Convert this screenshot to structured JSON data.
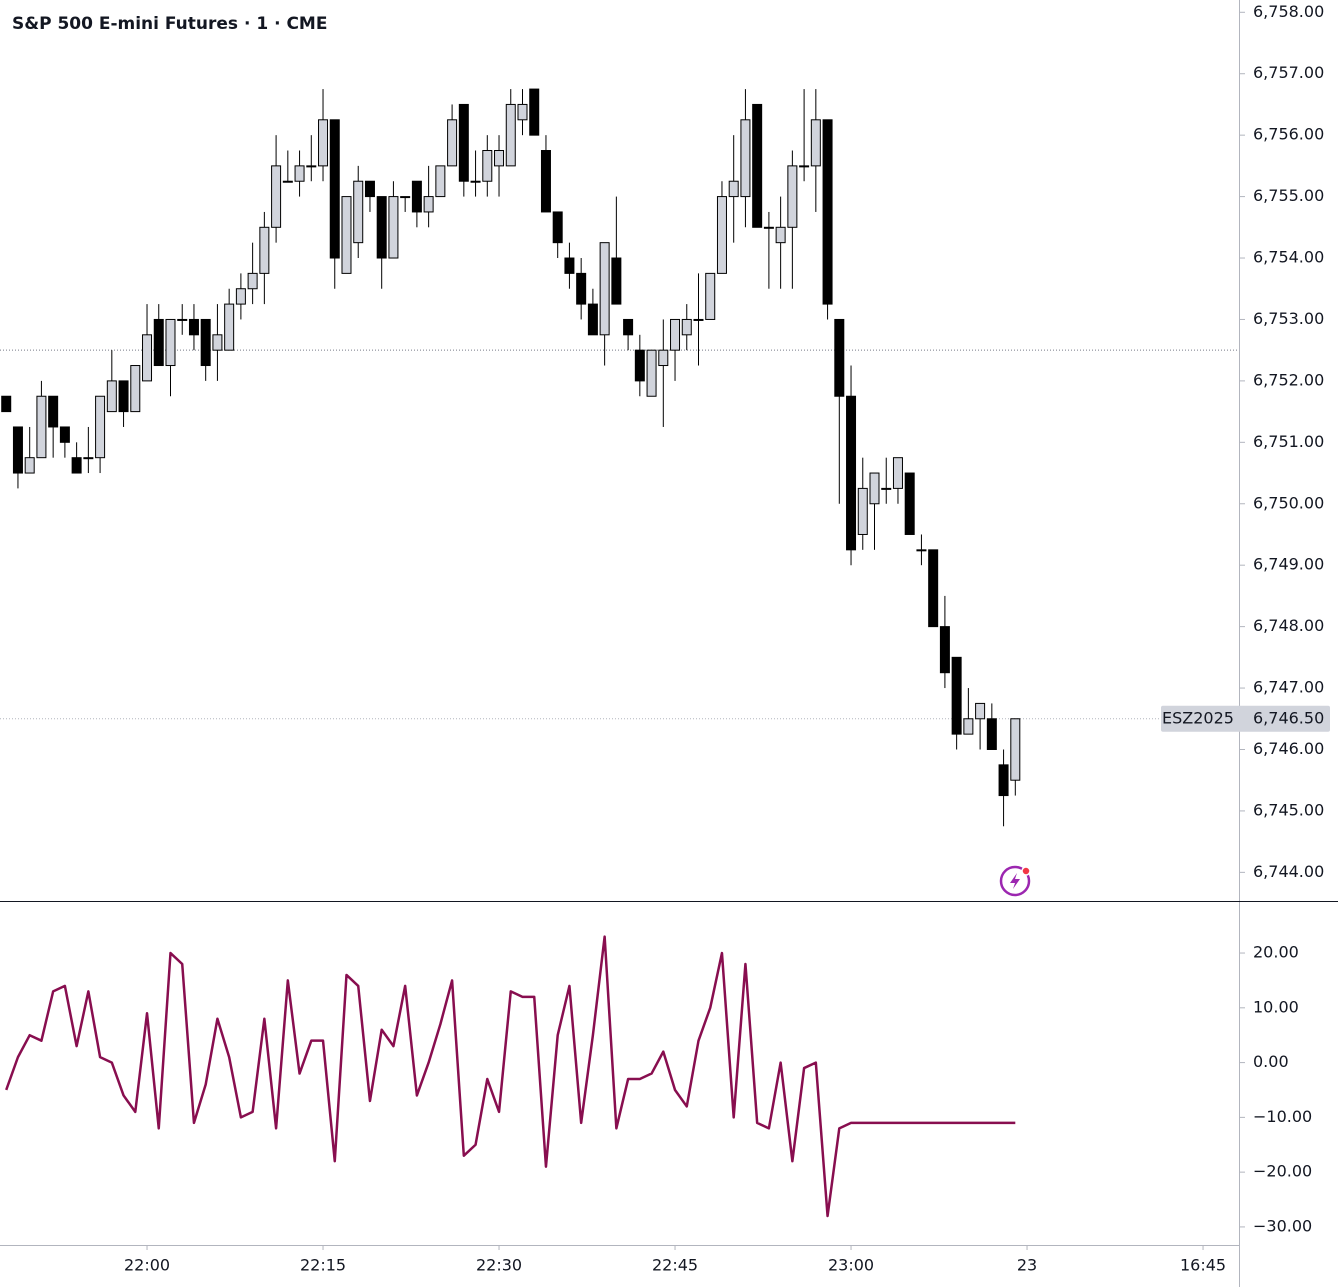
{
  "chart_data": {
    "type": "candlestick",
    "title": "S&P 500 E-mini Futures · 1 · CME",
    "x": [
      -12,
      -11,
      -10,
      -9,
      -8,
      -7,
      -6,
      -5,
      -4,
      -3,
      -2,
      -1,
      0,
      1,
      2,
      3,
      4,
      5,
      6,
      7,
      8,
      9,
      10,
      11,
      12,
      13,
      14,
      15,
      16,
      17,
      18,
      19,
      20,
      21,
      22,
      23,
      24,
      25,
      26,
      27,
      28,
      29,
      30,
      31,
      32,
      33,
      34,
      35,
      36,
      37,
      38,
      39,
      40,
      41,
      42,
      43,
      44,
      45,
      46,
      47,
      48,
      49,
      50,
      51,
      52,
      53,
      54,
      55,
      56,
      57,
      58,
      59,
      60,
      61,
      62,
      63,
      64,
      65,
      66,
      67,
      68,
      69,
      70,
      71,
      72,
      73,
      74
    ],
    "xlim": [
      -12.53,
      93.15
    ],
    "xticks": [
      {
        "value": 0,
        "label": "22:00"
      },
      {
        "value": 15,
        "label": "22:15"
      },
      {
        "value": 30,
        "label": "22:30"
      },
      {
        "value": 45,
        "label": "22:45"
      },
      {
        "value": 60,
        "label": "23:00"
      },
      {
        "value": 75,
        "label": "23"
      },
      {
        "value": 90,
        "label": "16:45"
      }
    ],
    "open": [
      6751.75,
      6751.25,
      6750.5,
      6750.75,
      6751.75,
      6751.25,
      6750.75,
      6750.75,
      6750.75,
      6751.5,
      6752.0,
      6751.5,
      6752.0,
      6753.0,
      6752.25,
      6753.0,
      6753.0,
      6753.0,
      6752.5,
      6752.5,
      6753.25,
      6753.5,
      6753.75,
      6754.5,
      6755.25,
      6755.25,
      6755.5,
      6755.5,
      6756.25,
      6753.75,
      6754.25,
      6755.25,
      6755.0,
      6754.0,
      6755.0,
      6755.25,
      6754.75,
      6755.0,
      6755.5,
      6756.5,
      6755.25,
      6755.25,
      6755.5,
      6755.5,
      6756.25,
      6756.75,
      6755.75,
      6754.75,
      6754.0,
      6753.75,
      6753.25,
      6752.75,
      6754.0,
      6753.0,
      6752.5,
      6751.75,
      6752.25,
      6752.5,
      6752.75,
      6753.0,
      6753.0,
      6753.75,
      6755.0,
      6755.0,
      6756.5,
      6754.5,
      6754.25,
      6754.5,
      6755.5,
      6755.5,
      6756.25,
      6753.0,
      6751.75,
      6749.5,
      6750.0,
      6750.25,
      6750.25,
      6750.5,
      6749.25,
      6749.25,
      6748.0,
      6747.5,
      6746.25,
      6746.5,
      6746.5,
      6745.75,
      6745.5
    ],
    "high": [
      6751.75,
      6751.25,
      6751.25,
      6752.0,
      6751.75,
      6751.25,
      6751.0,
      6751.25,
      6751.75,
      6752.5,
      6752.0,
      6752.25,
      6753.25,
      6753.25,
      6753.0,
      6753.25,
      6753.25,
      6753.0,
      6753.25,
      6753.5,
      6753.75,
      6754.25,
      6754.75,
      6756.0,
      6755.75,
      6755.75,
      6756.0,
      6756.75,
      6756.25,
      6755.0,
      6755.5,
      6755.25,
      6755.0,
      6755.25,
      6755.0,
      6755.25,
      6755.5,
      6755.5,
      6756.5,
      6756.5,
      6755.75,
      6756.0,
      6756.0,
      6756.75,
      6756.75,
      6756.75,
      6756.0,
      6754.75,
      6754.25,
      6754.0,
      6753.5,
      6754.25,
      6755.0,
      6753.0,
      6752.75,
      6752.5,
      6753.0,
      6753.0,
      6753.25,
      6753.75,
      6753.75,
      6755.25,
      6756.0,
      6756.75,
      6756.5,
      6754.75,
      6755.0,
      6755.75,
      6756.75,
      6756.75,
      6756.25,
      6753.0,
      6752.25,
      6750.75,
      6750.5,
      6750.75,
      6750.75,
      6750.5,
      6749.5,
      6749.25,
      6748.5,
      6747.5,
      6747.0,
      6746.75,
      6746.75,
      6746.0,
      6746.5
    ],
    "low": [
      6751.5,
      6750.25,
      6750.5,
      6750.75,
      6750.75,
      6750.75,
      6750.5,
      6750.5,
      6750.5,
      6751.5,
      6751.25,
      6751.5,
      6752.0,
      6752.25,
      6751.75,
      6752.75,
      6752.5,
      6752.0,
      6752.0,
      6752.5,
      6753.0,
      6753.25,
      6753.25,
      6754.25,
      6755.25,
      6755.0,
      6755.25,
      6755.25,
      6753.5,
      6753.75,
      6754.0,
      6754.75,
      6753.5,
      6754.0,
      6754.75,
      6754.5,
      6754.5,
      6755.0,
      6755.5,
      6755.0,
      6755.0,
      6755.0,
      6755.0,
      6755.5,
      6756.0,
      6756.0,
      6754.75,
      6754.0,
      6753.5,
      6753.0,
      6752.75,
      6752.25,
      6753.25,
      6752.5,
      6751.75,
      6751.75,
      6751.25,
      6752.0,
      6752.5,
      6752.25,
      6753.0,
      6753.75,
      6754.25,
      6754.5,
      6754.5,
      6753.5,
      6753.5,
      6753.5,
      6755.25,
      6754.75,
      6753.0,
      6750.0,
      6749.0,
      6749.25,
      6749.25,
      6750.0,
      6750.0,
      6749.5,
      6749.0,
      6748.0,
      6747.0,
      6746.0,
      6746.25,
      6746.0,
      6746.0,
      6744.75,
      6745.25
    ],
    "close": [
      6751.5,
      6750.5,
      6750.75,
      6751.75,
      6751.25,
      6751.0,
      6750.5,
      6750.75,
      6751.75,
      6752.0,
      6751.5,
      6752.25,
      6752.75,
      6752.25,
      6753.0,
      6753.0,
      6752.75,
      6752.25,
      6752.75,
      6753.25,
      6753.5,
      6753.75,
      6754.5,
      6755.5,
      6755.25,
      6755.5,
      6755.5,
      6756.25,
      6754.0,
      6755.0,
      6755.25,
      6755.0,
      6754.0,
      6755.0,
      6755.0,
      6754.75,
      6755.0,
      6755.5,
      6756.25,
      6755.25,
      6755.25,
      6755.75,
      6755.75,
      6756.5,
      6756.5,
      6756.0,
      6754.75,
      6754.25,
      6753.75,
      6753.25,
      6752.75,
      6754.25,
      6753.25,
      6752.75,
      6752.0,
      6752.5,
      6752.5,
      6753.0,
      6753.0,
      6753.0,
      6753.75,
      6755.0,
      6755.25,
      6756.25,
      6754.5,
      6754.5,
      6754.5,
      6755.5,
      6755.5,
      6756.25,
      6753.25,
      6751.75,
      6749.25,
      6750.25,
      6750.5,
      6750.25,
      6750.75,
      6749.5,
      6749.25,
      6748.0,
      6747.25,
      6746.25,
      6746.5,
      6746.75,
      6746.0,
      6745.25,
      6746.5
    ],
    "up_color": "#d1d4dc",
    "down_color": "#000000",
    "ylim": [
      6743.55,
      6758.2
    ],
    "yticks": [
      {
        "value": 6758,
        "label": "6,758.00"
      },
      {
        "value": 6757,
        "label": "6,757.00"
      },
      {
        "value": 6756,
        "label": "6,756.00"
      },
      {
        "value": 6755,
        "label": "6,755.00"
      },
      {
        "value": 6754,
        "label": "6,754.00"
      },
      {
        "value": 6753,
        "label": "6,753.00"
      },
      {
        "value": 6752,
        "label": "6,752.00"
      },
      {
        "value": 6751,
        "label": "6,751.00"
      },
      {
        "value": 6750,
        "label": "6,750.00"
      },
      {
        "value": 6749,
        "label": "6,749.00"
      },
      {
        "value": 6748,
        "label": "6,748.00"
      },
      {
        "value": 6747,
        "label": "6,747.00"
      },
      {
        "value": 6746,
        "label": "6,746.00"
      },
      {
        "value": 6745,
        "label": "6,745.00"
      },
      {
        "value": 6744,
        "label": "6,744.00"
      }
    ],
    "reference_price": 6752.5,
    "symbol_label": "ESZ2025",
    "last_price": {
      "value": 6746.5,
      "label": "6,746.50"
    },
    "indicator": {
      "type": "line",
      "color": "#880e4f",
      "values": [
        -5,
        1,
        5,
        4,
        13,
        14,
        3,
        13,
        1,
        0,
        -6,
        -9,
        9,
        -12,
        20,
        18,
        -11,
        -4,
        8,
        1,
        -10,
        -9,
        8,
        -12,
        15,
        -2,
        4,
        4,
        -18,
        16,
        14,
        -7,
        6,
        3,
        14,
        -6,
        0,
        7,
        15,
        -17,
        -15,
        -3,
        -9,
        13,
        12,
        12,
        -19,
        5,
        14,
        -11,
        5,
        23,
        -12,
        -3,
        -3,
        -2,
        2,
        -5,
        -8,
        4,
        10,
        20,
        -10,
        18,
        -11,
        -12,
        0,
        -18,
        -1,
        0,
        -28,
        -12,
        -11,
        -11,
        -11,
        -11,
        -11,
        -11,
        -11,
        -11,
        -11,
        -11,
        -11,
        -11,
        -11,
        -11,
        -11
      ],
      "ylim": [
        -33.3,
        29.5
      ],
      "yticks": [
        {
          "value": 20,
          "label": "20.00"
        },
        {
          "value": 10,
          "label": "10.00"
        },
        {
          "value": 0,
          "label": "0.00"
        },
        {
          "value": -10,
          "label": "−10.00"
        },
        {
          "value": -20,
          "label": "−20.00"
        },
        {
          "value": -30,
          "label": "−30.00"
        }
      ]
    }
  }
}
